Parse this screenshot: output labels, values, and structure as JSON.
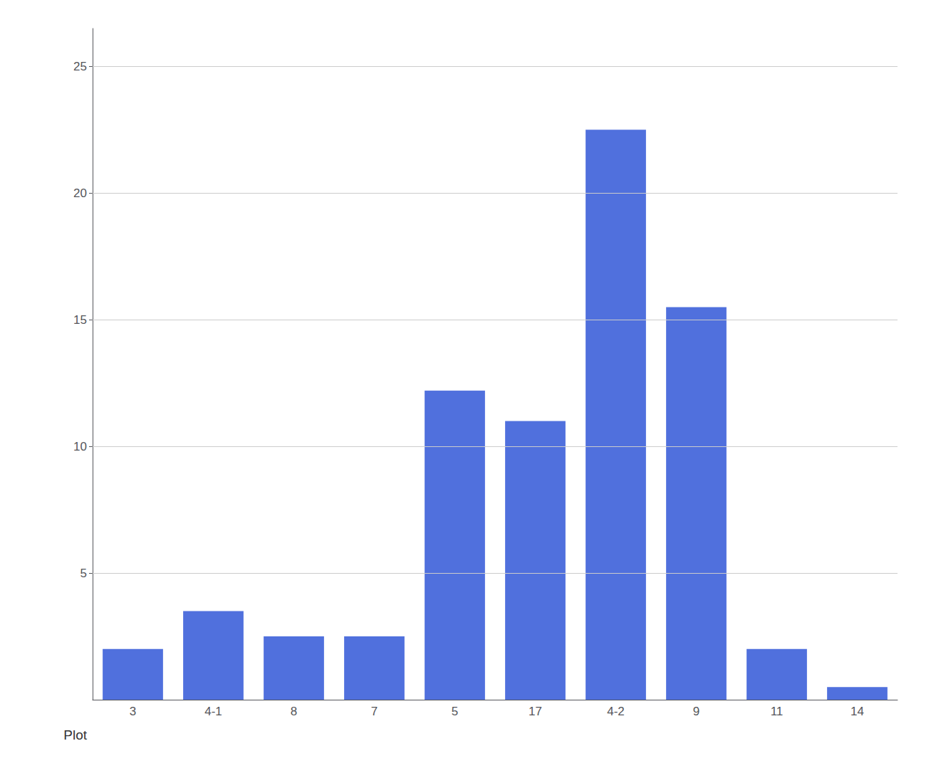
{
  "chart_data": {
    "type": "bar",
    "categories": [
      "3",
      "4-1",
      "8",
      "7",
      "5",
      "17",
      "4-2",
      "9",
      "11",
      "14"
    ],
    "values": [
      2.0,
      3.5,
      2.5,
      2.5,
      12.2,
      11.0,
      22.5,
      15.5,
      2.0,
      0.5
    ],
    "xlabel": "Plot",
    "ylim": [
      0,
      26.5
    ],
    "yticks": [
      5,
      10,
      15,
      20,
      25
    ],
    "grid": true
  }
}
